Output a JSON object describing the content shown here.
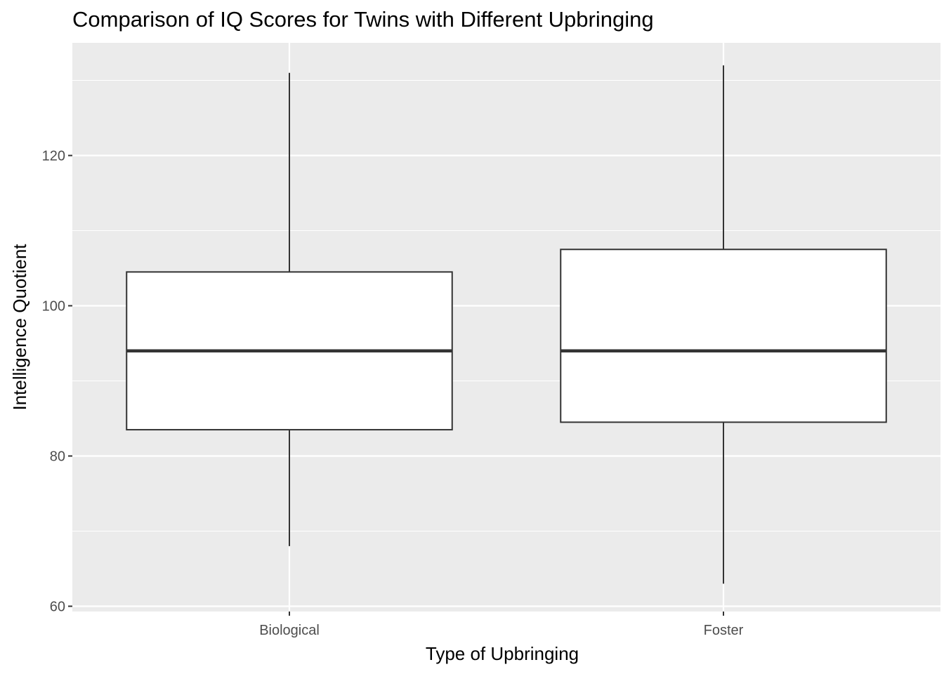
{
  "chart_data": {
    "type": "box",
    "title": "Comparison of IQ Scores for Twins with Different Upbringing",
    "xlabel": "Type of Upbringing",
    "ylabel": "Intelligence Quotient",
    "ylim": [
      59.3,
      135.0
    ],
    "yticks": [
      60,
      80,
      100,
      120
    ],
    "grid": true,
    "categories": [
      "Biological",
      "Foster"
    ],
    "boxes": [
      {
        "category": "Biological",
        "whisker_low": 68.0,
        "q1": 83.5,
        "median": 94.0,
        "q3": 104.5,
        "whisker_high": 131.0
      },
      {
        "category": "Foster",
        "whisker_low": 63.0,
        "q1": 84.5,
        "median": 94.0,
        "q3": 107.5,
        "whisker_high": 132.0
      }
    ]
  },
  "colors": {
    "panel_background": "#ebebeb",
    "grid_line": "#ffffff",
    "box_fill": "#ffffff",
    "box_stroke": "#333333",
    "tick_text": "#4d4d4d"
  }
}
